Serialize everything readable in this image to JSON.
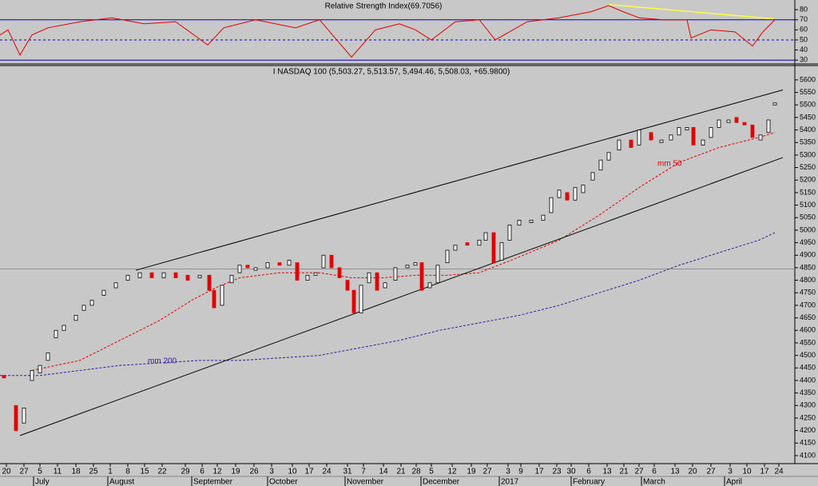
{
  "chart_data": [
    {
      "type": "line",
      "title": "Relative Strength Index(69.7056)",
      "xlim": [
        0,
        199
      ],
      "ylim": [
        27,
        88
      ],
      "yticks": [
        30,
        40,
        50,
        60,
        70,
        80
      ],
      "hlines": [
        {
          "value": 70,
          "style": "solid"
        },
        {
          "value": 50,
          "style": "dashed"
        },
        {
          "value": 30,
          "style": "solid"
        }
      ],
      "series": [
        {
          "color": "#e00000",
          "x": [
            0,
            2,
            5,
            8,
            12,
            20,
            28,
            36,
            44,
            52,
            56,
            64,
            74,
            80,
            88,
            94,
            100,
            104,
            108,
            114,
            120,
            124,
            132,
            140,
            148,
            152.4,
            156,
            160,
            166,
            172,
            173,
            178,
            184,
            188.4,
            191,
            194
          ],
          "values": [
            55,
            60,
            35,
            55,
            62,
            68,
            72,
            66,
            68,
            45,
            62,
            70,
            62,
            70,
            33,
            60,
            66,
            60,
            50,
            68,
            70,
            50,
            68,
            72,
            78,
            84,
            78,
            72,
            70,
            70,
            52,
            60,
            58,
            44,
            58,
            70
          ]
        },
        {
          "color": "#ffff40",
          "x": [
            152.4,
            193.6
          ],
          "values": [
            85,
            71
          ]
        }
      ]
    },
    {
      "type": "candlestick",
      "title": "I NASDAQ 100 (5,503.27, 5,513.57, 5,494.46, 5,508.03, +65.9800)",
      "xlim": [
        0,
        199
      ],
      "ylim": [
        4068,
        5654
      ],
      "yticks": [
        4100,
        4150,
        4200,
        4250,
        4300,
        4350,
        4400,
        4450,
        4500,
        4550,
        4600,
        4650,
        4700,
        4750,
        4800,
        4850,
        4900,
        4950,
        5000,
        5050,
        5100,
        5150,
        5200,
        5250,
        5300,
        5350,
        5400,
        5450,
        5500,
        5550,
        5600
      ],
      "xticks": [
        {
          "value": 1.6,
          "label": "20"
        },
        {
          "value": 6,
          "label": "27"
        },
        {
          "value": 10,
          "label": "5"
        },
        {
          "value": 14.4,
          "label": "11"
        },
        {
          "value": 19,
          "label": "18"
        },
        {
          "value": 23.4,
          "label": "25"
        },
        {
          "value": 27.6,
          "label": "1"
        },
        {
          "value": 32,
          "label": "8"
        },
        {
          "value": 36.2,
          "label": "15"
        },
        {
          "value": 40.6,
          "label": "22"
        },
        {
          "value": 46.4,
          "label": "29"
        },
        {
          "value": 50.6,
          "label": "6"
        },
        {
          "value": 54.4,
          "label": "12"
        },
        {
          "value": 59,
          "label": "19"
        },
        {
          "value": 63.6,
          "label": "26"
        },
        {
          "value": 68,
          "label": "3"
        },
        {
          "value": 73.2,
          "label": "10"
        },
        {
          "value": 77.4,
          "label": "17"
        },
        {
          "value": 81.8,
          "label": "24"
        },
        {
          "value": 87,
          "label": "31"
        },
        {
          "value": 91,
          "label": "7"
        },
        {
          "value": 96,
          "label": "14"
        },
        {
          "value": 100.4,
          "label": "21"
        },
        {
          "value": 104.2,
          "label": "28"
        },
        {
          "value": 108,
          "label": "5"
        },
        {
          "value": 113.2,
          "label": "12"
        },
        {
          "value": 118,
          "label": "19"
        },
        {
          "value": 122,
          "label": "27"
        },
        {
          "value": 127.2,
          "label": "3"
        },
        {
          "value": 130.4,
          "label": "9"
        },
        {
          "value": 135,
          "label": "17"
        },
        {
          "value": 139.4,
          "label": "23"
        },
        {
          "value": 143,
          "label": "30"
        },
        {
          "value": 147.4,
          "label": "6"
        },
        {
          "value": 152,
          "label": "13"
        },
        {
          "value": 156.2,
          "label": "21"
        },
        {
          "value": 160,
          "label": "27"
        },
        {
          "value": 163.8,
          "label": "6"
        },
        {
          "value": 169,
          "label": "13"
        },
        {
          "value": 173.4,
          "label": "20"
        },
        {
          "value": 178,
          "label": "27"
        },
        {
          "value": 182.8,
          "label": "3"
        },
        {
          "value": 187,
          "label": "10"
        },
        {
          "value": 191.4,
          "label": "17"
        },
        {
          "value": 195,
          "label": "24"
        }
      ],
      "months": [
        {
          "value": 8.4,
          "label": "July"
        },
        {
          "value": 27,
          "label": "August"
        },
        {
          "value": 48,
          "label": "September"
        },
        {
          "value": 67,
          "label": "October"
        },
        {
          "value": 86.4,
          "label": "November"
        },
        {
          "value": 105.4,
          "label": "December"
        },
        {
          "value": 125,
          "label": "2017"
        },
        {
          "value": 143,
          "label": "February"
        },
        {
          "value": 160.6,
          "label": "March"
        },
        {
          "value": 181.4,
          "label": "April"
        }
      ],
      "x": [
        1,
        4,
        6,
        8,
        10,
        12,
        14,
        16,
        19,
        21,
        23,
        26,
        29,
        32,
        35,
        38,
        41,
        44,
        47,
        50,
        52.4,
        53.6,
        55.6,
        58,
        60,
        62,
        64,
        67,
        70,
        72.4,
        74.4,
        77,
        79,
        81,
        83,
        85,
        87,
        88.6,
        90.4,
        92.4,
        94.4,
        96.4,
        99,
        102,
        104,
        105.6,
        107.6,
        109.6,
        112,
        114,
        117,
        120,
        121.6,
        123.6,
        125.6,
        127.6,
        130,
        133,
        136,
        138,
        140,
        142,
        144,
        146,
        148.4,
        150.4,
        152.4,
        155,
        158,
        160,
        163,
        165.6,
        168,
        170,
        172,
        173.6,
        176,
        178,
        180,
        182.4,
        184.4,
        186.4,
        188.4,
        190.4,
        192.4,
        194
      ],
      "open": [
        4420,
        4300,
        4230,
        4400,
        4430,
        4480,
        4570,
        4600,
        4640,
        4680,
        4700,
        4740,
        4770,
        4800,
        4810,
        4830,
        4810,
        4830,
        4820,
        4810,
        4820,
        4760,
        4700,
        4790,
        4830,
        4860,
        4840,
        4850,
        4870,
        4860,
        4870,
        4800,
        4820,
        4850,
        4900,
        4850,
        4800,
        4760,
        4670,
        4790,
        4830,
        4770,
        4800,
        4850,
        4860,
        4870,
        4770,
        4790,
        4870,
        4920,
        4950,
        4940,
        4960,
        4990,
        4880,
        4960,
        5020,
        5030,
        5040,
        5070,
        5130,
        5150,
        5120,
        5150,
        5200,
        5240,
        5280,
        5320,
        5360,
        5340,
        5390,
        5350,
        5360,
        5380,
        5400,
        5410,
        5340,
        5370,
        5410,
        5430,
        5450,
        5430,
        5420,
        5360,
        5390,
        5500
      ],
      "close": [
        4410,
        4200,
        4290,
        4440,
        4460,
        4510,
        4600,
        4620,
        4660,
        4700,
        4720,
        4760,
        4790,
        4820,
        4830,
        4810,
        4830,
        4810,
        4800,
        4820,
        4760,
        4690,
        4780,
        4820,
        4860,
        4850,
        4850,
        4870,
        4860,
        4880,
        4800,
        4820,
        4830,
        4900,
        4850,
        4810,
        4760,
        4670,
        4780,
        4830,
        4760,
        4790,
        4850,
        4860,
        4870,
        4760,
        4790,
        4860,
        4920,
        4940,
        4940,
        4960,
        4990,
        4870,
        4950,
        5020,
        5040,
        5040,
        5060,
        5130,
        5160,
        5120,
        5170,
        5180,
        5230,
        5280,
        5310,
        5360,
        5330,
        5400,
        5360,
        5360,
        5380,
        5410,
        5410,
        5340,
        5360,
        5410,
        5440,
        5440,
        5430,
        5420,
        5370,
        5380,
        5440,
        5508
      ],
      "hline": 4845,
      "series": [
        {
          "name": "mm 50",
          "color": "#e00000",
          "style": "dashed",
          "x": [
            8,
            20,
            30,
            40,
            48,
            54,
            60,
            70,
            80,
            88,
            96,
            104,
            112,
            120,
            128,
            140,
            150,
            160,
            170,
            180,
            190,
            194
          ],
          "values": [
            4440,
            4480,
            4560,
            4640,
            4720,
            4770,
            4810,
            4830,
            4830,
            4810,
            4810,
            4820,
            4820,
            4830,
            4880,
            4960,
            5060,
            5170,
            5270,
            5330,
            5370,
            5390
          ]
        },
        {
          "name": "mm 200",
          "color": "#3a1a9a",
          "style": "dashed",
          "x": [
            0,
            10,
            20,
            30,
            40,
            50,
            60,
            70,
            80,
            90,
            100,
            110,
            120,
            130,
            140,
            150,
            160,
            170,
            180,
            190,
            194
          ],
          "values": [
            4420,
            4420,
            4440,
            4460,
            4470,
            4480,
            4480,
            4490,
            4500,
            4530,
            4560,
            4600,
            4630,
            4660,
            4700,
            4750,
            4800,
            4860,
            4910,
            4960,
            4990
          ]
        },
        {
          "color": "#000000",
          "style": "solid",
          "x": [
            34,
            196
          ],
          "values": [
            4840,
            5560
          ]
        },
        {
          "color": "#000000",
          "style": "solid",
          "x": [
            5,
            196
          ],
          "values": [
            4180,
            5290
          ]
        }
      ]
    }
  ]
}
